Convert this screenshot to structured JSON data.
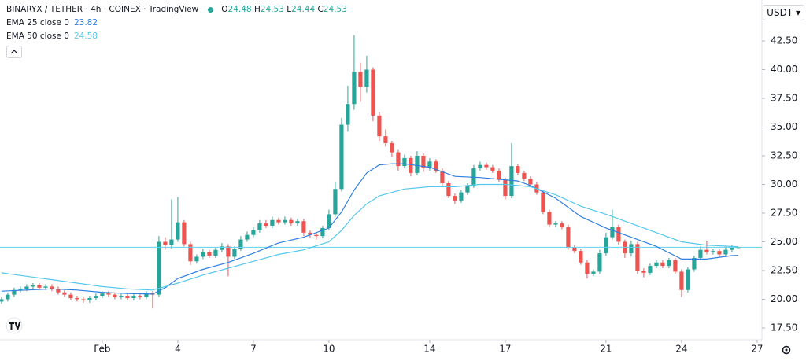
{
  "chart_data": {
    "type": "candlestick",
    "title": "BINARYX / TETHER · 4h · COINEX · TradingView",
    "ohlc_prefixes": [
      "O",
      "H",
      "L",
      "C"
    ],
    "unit_label": "USDT",
    "up_color": "#26a69a",
    "down_color": "#ef5350",
    "price_line_color": "#5fd0e6",
    "x": [
      -3,
      -2.75,
      -2.5,
      -2.25,
      -2,
      -1.75,
      -1.5,
      -1.25,
      -1,
      -0.75,
      -0.5,
      -0.25,
      0,
      0.25,
      0.5,
      0.75,
      1,
      1.25,
      1.5,
      1.75,
      2,
      2.25,
      2.5,
      2.75,
      3,
      3.25,
      3.5,
      3.75,
      4,
      4.25,
      4.5,
      4.75,
      5,
      5.25,
      5.5,
      5.75,
      6,
      6.25,
      6.5,
      6.75,
      7,
      7.25,
      7.5,
      7.75,
      8,
      8.25,
      8.5,
      8.75,
      9,
      9.25,
      9.5,
      9.75,
      10,
      10.25,
      10.5,
      10.75,
      11,
      11.25,
      11.5,
      11.75,
      12,
      12.25,
      12.5,
      12.75,
      13,
      13.25,
      13.5,
      13.75,
      14,
      14.25,
      14.5,
      14.75,
      15,
      15.25,
      15.5,
      15.75,
      16,
      16.25,
      16.5,
      16.75,
      17,
      17.25,
      17.5,
      17.75,
      18,
      18.25,
      18.5,
      18.75,
      19,
      19.25,
      19.5,
      19.75,
      20,
      20.25,
      20.5,
      20.75,
      21,
      21.25,
      21.5,
      21.75,
      22,
      22.25,
      22.5,
      22.75,
      23,
      23.25,
      23.5,
      23.75,
      24,
      24.25,
      24.5,
      24.75,
      25,
      25.25,
      25.5,
      25.75,
      26,
      26.25
    ],
    "open": [
      19.8,
      20.0,
      20.4,
      20.8,
      20.9,
      21.1,
      21.2,
      21.0,
      21.1,
      20.9,
      20.6,
      20.4,
      20.1,
      20.0,
      19.9,
      20.1,
      20.3,
      20.5,
      20.4,
      20.2,
      20.3,
      20.1,
      20.3,
      20.2,
      20.5,
      20.4,
      25.0,
      24.7,
      25.2,
      26.7,
      24.8,
      23.3,
      23.7,
      24.1,
      23.8,
      24.3,
      24.6,
      23.7,
      24.4,
      25.2,
      25.6,
      26.0,
      26.6,
      26.4,
      26.9,
      26.7,
      26.9,
      26.6,
      26.8,
      25.8,
      25.6,
      25.5,
      26.2,
      27.4,
      29.6,
      35.2,
      37.0,
      39.8,
      38.5,
      40.0,
      36.0,
      34.2,
      33.6,
      32.8,
      31.6,
      32.3,
      31.0,
      32.5,
      31.4,
      32.0,
      31.2,
      30.1,
      29.0,
      28.6,
      29.3,
      29.9,
      31.4,
      31.7,
      31.5,
      31.2,
      30.4,
      29.0,
      31.6,
      31.0,
      30.5,
      30.0,
      29.3,
      27.6,
      26.5,
      26.6,
      26.3,
      24.5,
      24.2,
      23.2,
      22.2,
      22.4,
      24.0,
      25.4,
      26.3,
      25.0,
      24.0,
      24.8,
      22.5,
      22.3,
      22.9,
      23.2,
      22.9,
      23.4,
      22.4,
      20.8,
      22.6,
      23.6,
      24.3,
      24.1,
      24.2,
      23.9,
      24.3,
      24.48
    ],
    "high": [
      20.2,
      20.6,
      21.0,
      21.1,
      21.3,
      21.4,
      21.4,
      21.3,
      21.3,
      21.1,
      20.8,
      20.6,
      20.3,
      20.2,
      20.3,
      20.5,
      20.7,
      20.7,
      20.6,
      20.5,
      20.5,
      20.5,
      20.5,
      20.7,
      20.7,
      25.5,
      25.4,
      28.7,
      28.9,
      26.9,
      25.0,
      23.9,
      24.4,
      24.3,
      24.5,
      24.9,
      24.8,
      24.6,
      25.5,
      25.9,
      26.3,
      26.9,
      26.9,
      27.2,
      27.1,
      27.2,
      27.1,
      27.0,
      27.0,
      26.0,
      25.8,
      26.4,
      27.8,
      30.2,
      35.8,
      38.6,
      43.0,
      40.6,
      41.2,
      40.2,
      36.3,
      34.8,
      33.8,
      33.0,
      32.6,
      32.5,
      32.9,
      32.7,
      32.3,
      32.2,
      31.4,
      30.3,
      29.2,
      29.5,
      30.1,
      31.7,
      32.0,
      31.9,
      31.7,
      31.4,
      30.6,
      33.6,
      31.8,
      31.2,
      30.7,
      30.2,
      29.5,
      27.8,
      26.8,
      26.8,
      26.5,
      24.7,
      24.4,
      23.4,
      22.6,
      24.3,
      25.8,
      27.8,
      26.5,
      25.2,
      25.1,
      25.0,
      22.7,
      23.1,
      23.4,
      23.4,
      23.6,
      23.6,
      22.6,
      22.8,
      23.8,
      24.6,
      25.1,
      24.4,
      24.4,
      24.6,
      24.7,
      24.53
    ],
    "low": [
      19.6,
      19.8,
      20.2,
      20.6,
      20.7,
      20.9,
      20.8,
      20.8,
      20.7,
      20.4,
      20.2,
      19.9,
      19.8,
      19.7,
      19.7,
      19.9,
      20.1,
      20.2,
      20.0,
      20.0,
      19.9,
      19.9,
      20.0,
      20.0,
      19.2,
      20.2,
      24.3,
      24.4,
      25.0,
      24.6,
      23.0,
      23.1,
      23.5,
      23.6,
      23.6,
      24.1,
      22.0,
      23.5,
      24.2,
      25.0,
      25.4,
      25.8,
      26.2,
      26.2,
      26.5,
      26.5,
      26.4,
      26.4,
      25.5,
      25.3,
      25.2,
      25.3,
      26.0,
      27.2,
      29.4,
      34.6,
      36.5,
      37.2,
      38.0,
      35.5,
      33.8,
      33.3,
      32.4,
      31.2,
      31.4,
      30.7,
      30.8,
      31.1,
      31.2,
      31.0,
      29.9,
      28.8,
      28.3,
      28.4,
      29.1,
      29.7,
      31.2,
      31.3,
      31.0,
      30.2,
      28.7,
      28.8,
      30.8,
      30.3,
      29.8,
      29.1,
      27.4,
      26.3,
      26.3,
      26.1,
      24.3,
      24.0,
      23.0,
      21.8,
      22.0,
      22.2,
      23.8,
      25.2,
      24.7,
      23.6,
      23.7,
      22.2,
      21.9,
      22.1,
      22.7,
      22.7,
      22.7,
      22.2,
      20.2,
      20.6,
      22.4,
      23.4,
      23.9,
      23.9,
      23.7,
      23.7,
      24.1,
      24.44
    ],
    "close": [
      20.0,
      20.4,
      20.8,
      20.9,
      21.1,
      21.2,
      21.0,
      21.1,
      20.9,
      20.6,
      20.4,
      20.1,
      20.0,
      19.9,
      20.1,
      20.3,
      20.5,
      20.4,
      20.2,
      20.3,
      20.1,
      20.3,
      20.2,
      20.5,
      20.4,
      25.0,
      24.7,
      25.2,
      26.7,
      24.8,
      23.3,
      23.7,
      24.1,
      23.8,
      24.3,
      24.6,
      23.7,
      24.4,
      25.2,
      25.6,
      26.0,
      26.6,
      26.4,
      26.9,
      26.7,
      26.9,
      26.6,
      26.8,
      25.8,
      25.6,
      25.5,
      26.2,
      27.4,
      29.6,
      35.2,
      37.0,
      39.8,
      38.5,
      40.0,
      36.0,
      34.2,
      33.6,
      32.8,
      31.6,
      32.3,
      31.0,
      32.5,
      31.4,
      32.0,
      31.2,
      30.1,
      29.0,
      28.6,
      29.3,
      29.9,
      31.4,
      31.7,
      31.5,
      31.2,
      30.4,
      29.0,
      31.6,
      31.0,
      30.5,
      30.0,
      29.3,
      27.6,
      26.5,
      26.6,
      26.3,
      24.5,
      24.2,
      23.2,
      22.2,
      22.4,
      24.0,
      25.4,
      26.3,
      25.0,
      24.0,
      24.8,
      22.5,
      22.3,
      22.9,
      23.2,
      22.9,
      23.4,
      22.4,
      20.8,
      22.6,
      23.6,
      24.3,
      24.1,
      24.2,
      23.9,
      24.3,
      24.48,
      24.53
    ],
    "series": [
      {
        "name": "EMA 25 close 0",
        "color": "#2f7fe0",
        "x": [
          -3,
          -2,
          -1,
          0,
          1,
          2,
          3,
          3.5,
          4,
          5,
          6,
          7,
          8,
          9,
          10,
          10.5,
          11,
          11.5,
          12,
          12.5,
          13,
          14,
          15,
          16,
          17,
          17.5,
          18,
          19,
          20,
          21,
          22,
          23,
          24,
          25,
          26,
          26.25
        ],
        "values": [
          20.7,
          20.8,
          20.9,
          20.8,
          20.6,
          20.5,
          20.45,
          21.0,
          21.8,
          22.6,
          23.2,
          24.0,
          24.9,
          25.4,
          26.2,
          27.6,
          29.5,
          31.0,
          31.7,
          31.8,
          31.8,
          31.5,
          30.7,
          30.6,
          30.4,
          30.3,
          29.9,
          28.8,
          27.2,
          26.2,
          25.4,
          24.6,
          23.5,
          23.5,
          23.8,
          23.82
        ]
      },
      {
        "name": "EMA 50 close 0",
        "color": "#56c8ec",
        "x": [
          -3,
          -2,
          -1,
          0,
          1,
          2,
          3,
          4,
          5,
          6,
          7,
          8,
          9,
          10,
          10.5,
          11,
          11.5,
          12,
          13,
          14,
          15,
          16,
          17,
          18,
          19,
          20,
          21,
          22,
          23,
          24,
          25,
          26,
          26.25
        ],
        "values": [
          22.3,
          22.0,
          21.7,
          21.4,
          21.1,
          20.9,
          20.8,
          21.4,
          22.1,
          22.7,
          23.3,
          23.9,
          24.3,
          25.0,
          26.0,
          27.3,
          28.3,
          29.0,
          29.6,
          29.8,
          29.8,
          30.0,
          30.0,
          29.8,
          29.1,
          28.1,
          27.4,
          26.6,
          25.8,
          25.0,
          24.7,
          24.6,
          24.58
        ]
      }
    ],
    "xlim": [
      -3.06,
      27.19
    ],
    "xticks": [
      {
        "value": 1,
        "label": "Feb"
      },
      4,
      7,
      10,
      14,
      17,
      21,
      24,
      27
    ],
    "ylim": [
      16.47,
      46.06
    ],
    "yticks": [
      {
        "value": 17.5,
        "label": "17.50"
      },
      {
        "value": 20,
        "label": "20.00"
      },
      {
        "value": 22.5,
        "label": "22.50"
      },
      {
        "value": 25,
        "label": "25.00"
      },
      {
        "value": 27.5,
        "label": "27.50"
      },
      {
        "value": 30,
        "label": "30.00"
      },
      {
        "value": 32.5,
        "label": "32.50"
      },
      {
        "value": 35,
        "label": "35.00"
      },
      {
        "value": 37.5,
        "label": "37.50"
      },
      {
        "value": 40,
        "label": "40.00"
      },
      {
        "value": 42.5,
        "label": "42.50"
      }
    ],
    "grid": false
  }
}
